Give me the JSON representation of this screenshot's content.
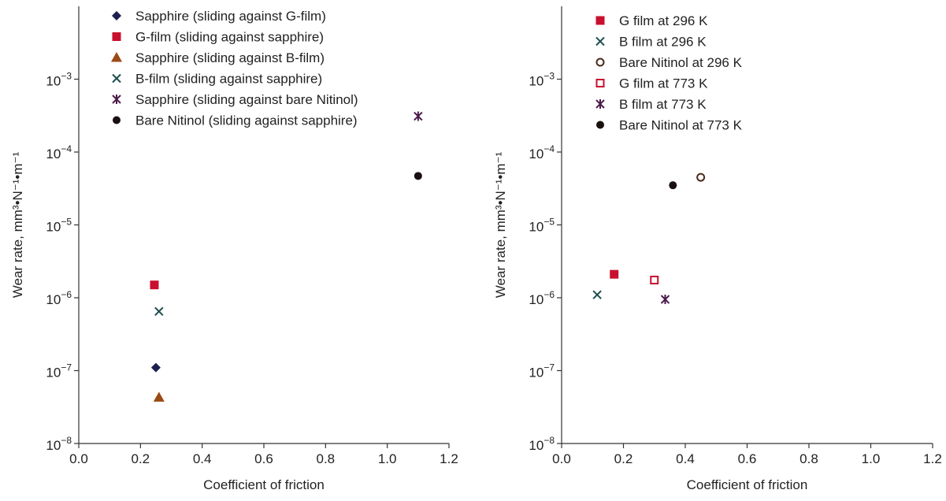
{
  "chart_data": [
    {
      "type": "scatter",
      "xlabel": "Coefficient of friction",
      "ylabel": "Wear rate, mm³•N⁻¹•m⁻¹",
      "xlim": [
        0.0,
        1.2
      ],
      "ylim": [
        1e-08,
        0.01
      ],
      "yscale": "log",
      "grid": false,
      "legend": "top-left",
      "xticks": [
        "0.0",
        "0.2",
        "0.4",
        "0.6",
        "0.8",
        "1.0",
        "1.2"
      ],
      "yticks": [
        {
          "base": "10",
          "exp": "−8",
          "value": 1e-08
        },
        {
          "base": "10",
          "exp": "−7",
          "value": 1e-07
        },
        {
          "base": "10",
          "exp": "−6",
          "value": 1e-06
        },
        {
          "base": "10",
          "exp": "−5",
          "value": 1e-05
        },
        {
          "base": "10",
          "exp": "−4",
          "value": 0.0001
        },
        {
          "base": "10",
          "exp": "−3",
          "value": 0.001
        }
      ],
      "series": [
        {
          "name": "Sapphire (sliding against G-film)",
          "marker": "diamond",
          "color": "#1f1f4f",
          "x": [
            0.25
          ],
          "y": [
            1.1e-07
          ]
        },
        {
          "name": "G-film (sliding against sapphire)",
          "marker": "square",
          "color": "#c8102e",
          "x": [
            0.245
          ],
          "y": [
            1.5e-06
          ]
        },
        {
          "name": "Sapphire (sliding against B-film)",
          "marker": "triangle",
          "color": "#9a4a14",
          "x": [
            0.26
          ],
          "y": [
            4.3e-08
          ]
        },
        {
          "name": "B-film (sliding against sapphire)",
          "marker": "x",
          "color": "#1e4d4d",
          "x": [
            0.26
          ],
          "y": [
            6.5e-07
          ]
        },
        {
          "name": "Sapphire (sliding against bare Nitinol)",
          "marker": "asterisk",
          "color": "#4a1a4a",
          "x": [
            1.1
          ],
          "y": [
            0.00031
          ]
        },
        {
          "name": "Bare Nitinol (sliding against sapphire)",
          "marker": "circle",
          "color": "#1a1010",
          "x": [
            1.1
          ],
          "y": [
            4.7e-05
          ]
        }
      ]
    },
    {
      "type": "scatter",
      "xlabel": "Coefficient of friction",
      "ylabel": "Wear rate, mm³•N⁻¹•m⁻¹",
      "xlim": [
        0.0,
        1.2
      ],
      "ylim": [
        1e-08,
        0.01
      ],
      "yscale": "log",
      "grid": false,
      "legend": "top-left",
      "xticks": [
        "0.0",
        "0.2",
        "0.4",
        "0.6",
        "0.8",
        "1.0",
        "1.2"
      ],
      "yticks": [
        {
          "base": "10",
          "exp": "−8",
          "value": 1e-08
        },
        {
          "base": "10",
          "exp": "−7",
          "value": 1e-07
        },
        {
          "base": "10",
          "exp": "−6",
          "value": 1e-06
        },
        {
          "base": "10",
          "exp": "−5",
          "value": 1e-05
        },
        {
          "base": "10",
          "exp": "−4",
          "value": 0.0001
        },
        {
          "base": "10",
          "exp": "−3",
          "value": 0.001
        }
      ],
      "series": [
        {
          "name": "G film at 296 K",
          "marker": "square",
          "color": "#c8102e",
          "x": [
            0.17
          ],
          "y": [
            2.1e-06
          ]
        },
        {
          "name": "B film at 296 K",
          "marker": "x",
          "color": "#1e4d4d",
          "x": [
            0.115
          ],
          "y": [
            1.1e-06
          ]
        },
        {
          "name": "Bare Nitinol at 296 K",
          "marker": "circle-open",
          "color": "#4a2a1a",
          "x": [
            0.45
          ],
          "y": [
            4.5e-05
          ]
        },
        {
          "name": "G film at 773 K",
          "marker": "square-open",
          "color": "#c8102e",
          "x": [
            0.3
          ],
          "y": [
            1.75e-06
          ]
        },
        {
          "name": "B film at 773 K",
          "marker": "asterisk",
          "color": "#4a1a4a",
          "x": [
            0.335
          ],
          "y": [
            9.5e-07
          ]
        },
        {
          "name": "Bare Nitinol at 773 K",
          "marker": "circle",
          "color": "#1a1010",
          "x": [
            0.36
          ],
          "y": [
            3.5e-05
          ]
        }
      ]
    }
  ]
}
